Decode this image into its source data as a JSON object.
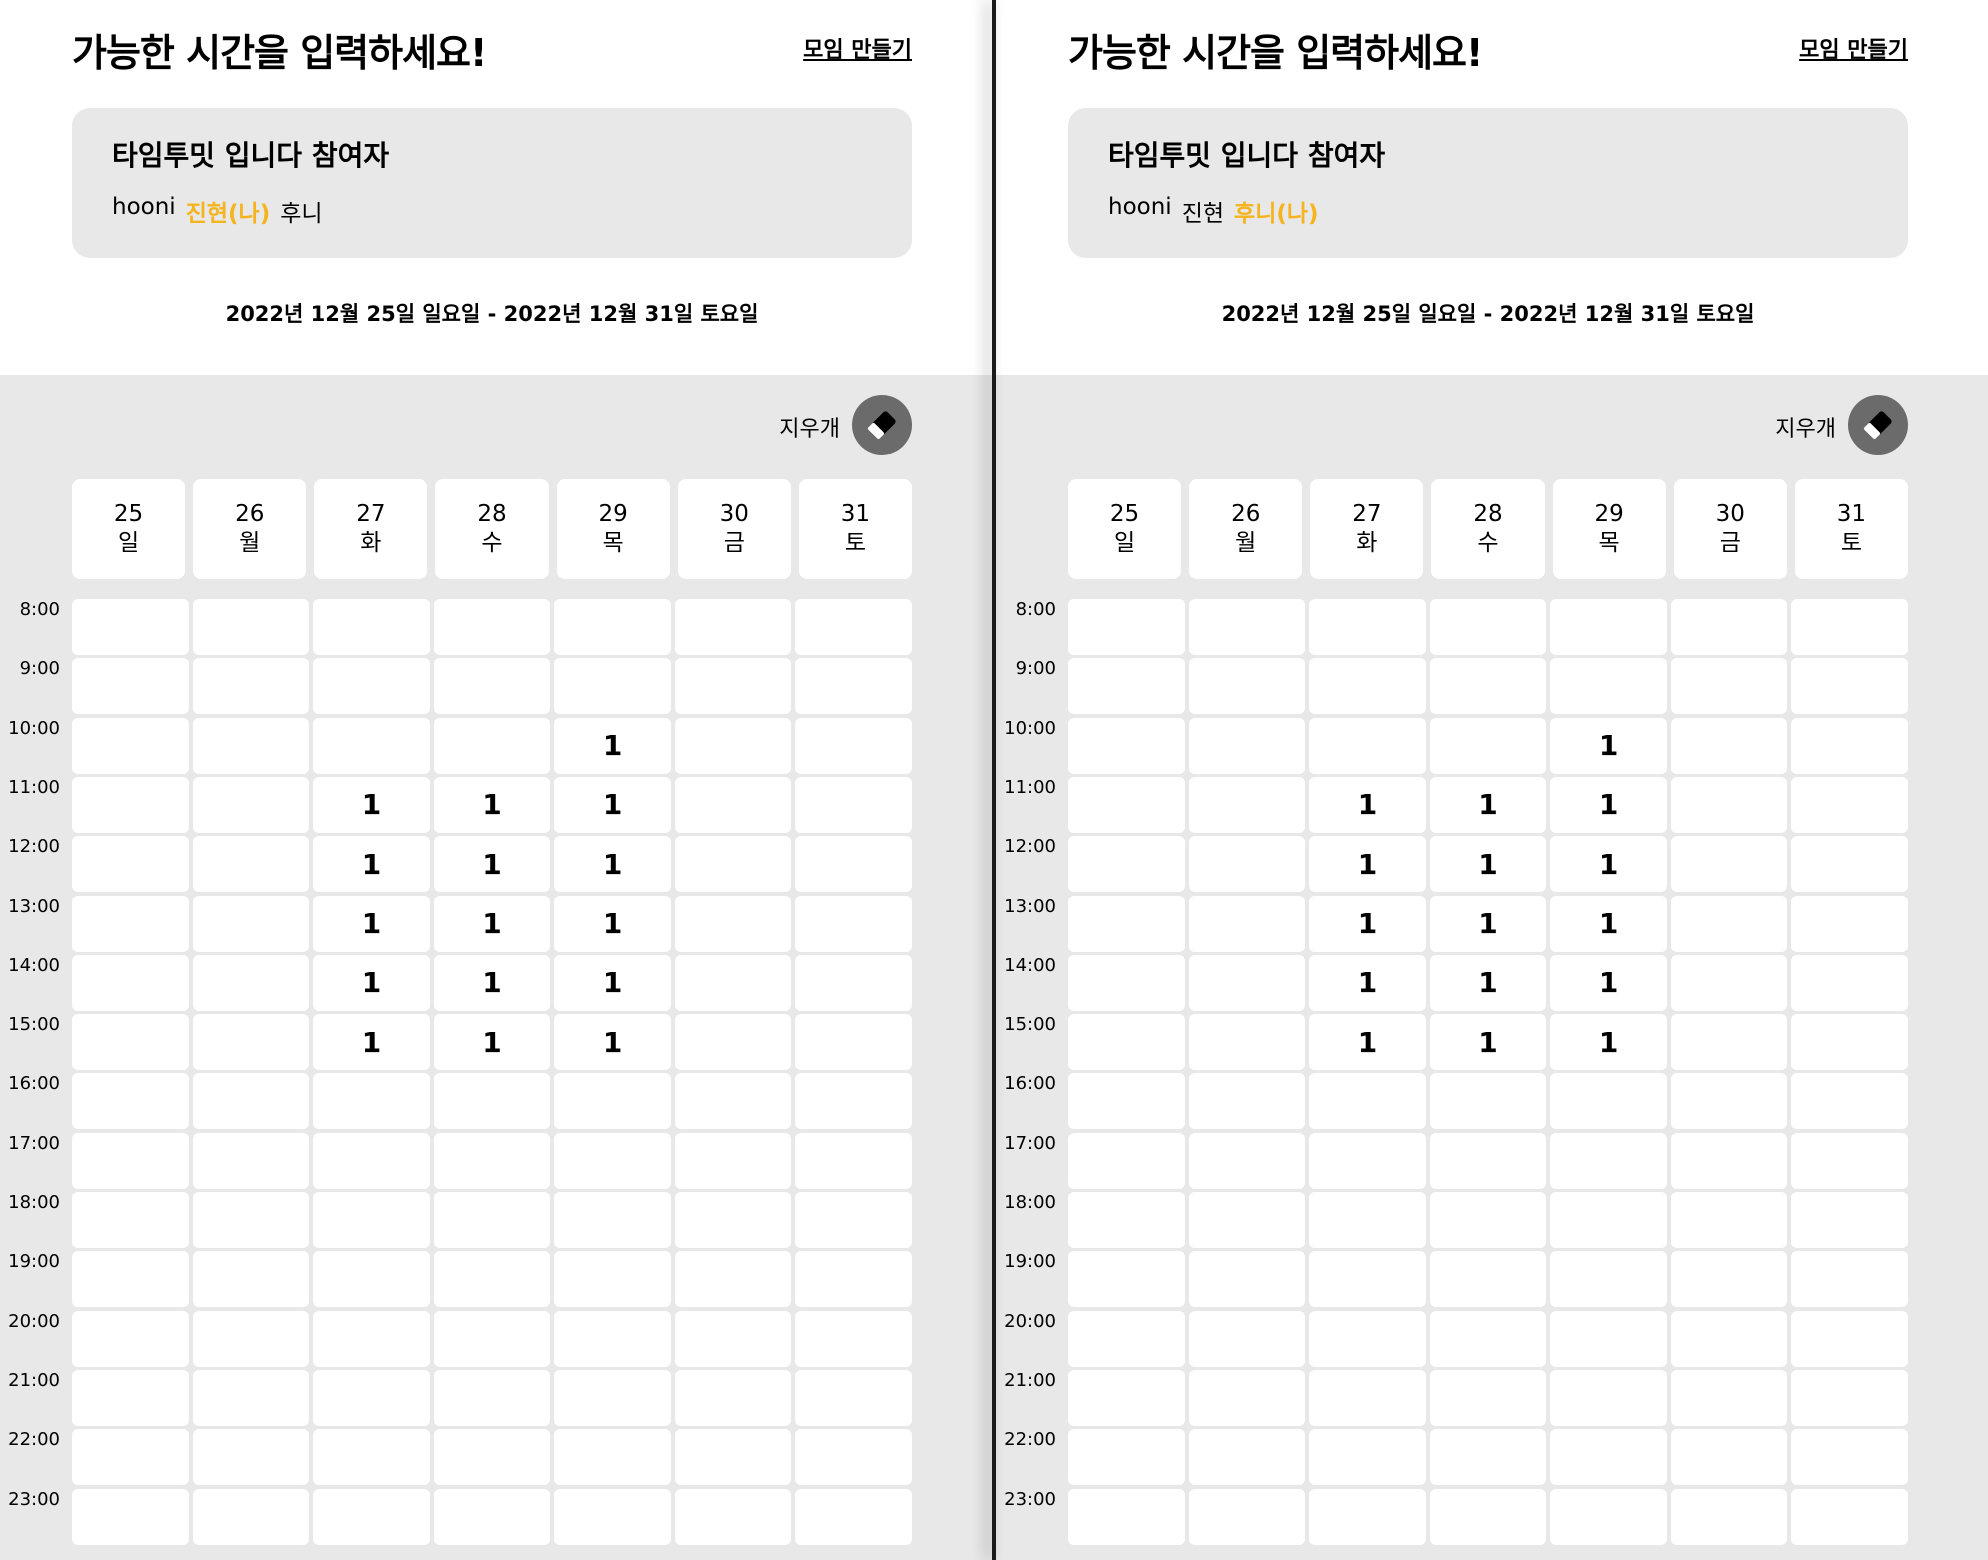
{
  "panels": [
    {
      "title": "가능한 시간을 입력하세요!",
      "create_label": "모임 만들기",
      "card_title": "타임투밋 입니다 참여자",
      "participants": [
        {
          "name": "hooni",
          "me": false
        },
        {
          "name": "진현(나)",
          "me": true
        },
        {
          "name": "후니",
          "me": false
        }
      ],
      "date_range": "2022년 12월 25일 일요일 - 2022년 12월 31일 토요일",
      "eraser_label": "지우개"
    },
    {
      "title": "가능한 시간을 입력하세요!",
      "create_label": "모임 만들기",
      "card_title": "타임투밋 입니다 참여자",
      "participants": [
        {
          "name": "hooni",
          "me": false
        },
        {
          "name": "진현",
          "me": false
        },
        {
          "name": "후니(나)",
          "me": true
        }
      ],
      "date_range": "2022년 12월 25일 일요일 - 2022년 12월 31일 토요일",
      "eraser_label": "지우개"
    }
  ],
  "days": [
    {
      "date": "25",
      "weekday": "일"
    },
    {
      "date": "26",
      "weekday": "월"
    },
    {
      "date": "27",
      "weekday": "화"
    },
    {
      "date": "28",
      "weekday": "수"
    },
    {
      "date": "29",
      "weekday": "목"
    },
    {
      "date": "30",
      "weekday": "금"
    },
    {
      "date": "31",
      "weekday": "토"
    }
  ],
  "times": [
    "8:00",
    "9:00",
    "10:00",
    "11:00",
    "12:00",
    "13:00",
    "14:00",
    "15:00",
    "16:00",
    "17:00",
    "18:00",
    "19:00",
    "20:00",
    "21:00",
    "22:00",
    "23:00"
  ],
  "counts": [
    [
      "",
      "",
      "",
      "",
      "",
      "",
      ""
    ],
    [
      "",
      "",
      "",
      "",
      "",
      "",
      ""
    ],
    [
      "",
      "",
      "",
      "",
      "1",
      "",
      ""
    ],
    [
      "",
      "",
      "1",
      "1",
      "1",
      "",
      ""
    ],
    [
      "",
      "",
      "1",
      "1",
      "1",
      "",
      ""
    ],
    [
      "",
      "",
      "1",
      "1",
      "1",
      "",
      ""
    ],
    [
      "",
      "",
      "1",
      "1",
      "1",
      "",
      ""
    ],
    [
      "",
      "",
      "1",
      "1",
      "1",
      "",
      ""
    ],
    [
      "",
      "",
      "",
      "",
      "",
      "",
      ""
    ],
    [
      "",
      "",
      "",
      "",
      "",
      "",
      ""
    ],
    [
      "",
      "",
      "",
      "",
      "",
      "",
      ""
    ],
    [
      "",
      "",
      "",
      "",
      "",
      "",
      ""
    ],
    [
      "",
      "",
      "",
      "",
      "",
      "",
      ""
    ],
    [
      "",
      "",
      "",
      "",
      "",
      "",
      ""
    ],
    [
      "",
      "",
      "",
      "",
      "",
      "",
      ""
    ],
    [
      "",
      "",
      "",
      "",
      "",
      "",
      ""
    ]
  ],
  "colors": {
    "accent": "#f5b41d",
    "panel_bg": "#e8e8e8",
    "eraser_bg": "#6b6b6b"
  },
  "icons": {
    "eraser": "eraser-icon"
  }
}
